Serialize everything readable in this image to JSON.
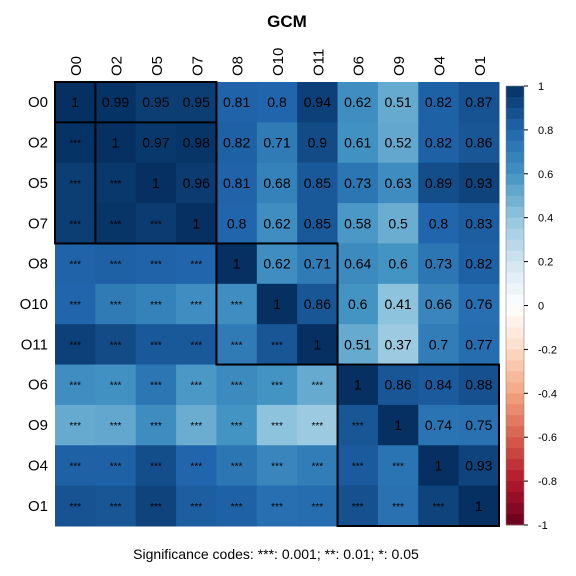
{
  "chart_data": {
    "type": "heatmap",
    "title": "GCM",
    "variables": [
      "O0",
      "O2",
      "O5",
      "O7",
      "O8",
      "O10",
      "O11",
      "O6",
      "O9",
      "O4",
      "O1"
    ],
    "upper_values": [
      [
        1,
        0.99,
        0.95,
        0.95,
        0.81,
        0.8,
        0.94,
        0.62,
        0.51,
        0.82,
        0.87
      ],
      [
        null,
        1,
        0.97,
        0.98,
        0.82,
        0.71,
        0.9,
        0.61,
        0.52,
        0.82,
        0.86
      ],
      [
        null,
        null,
        1,
        0.96,
        0.81,
        0.68,
        0.85,
        0.73,
        0.63,
        0.89,
        0.93
      ],
      [
        null,
        null,
        null,
        1,
        0.8,
        0.62,
        0.85,
        0.58,
        0.5,
        0.8,
        0.83
      ],
      [
        null,
        null,
        null,
        null,
        1,
        0.62,
        0.71,
        0.64,
        0.6,
        0.73,
        0.82
      ],
      [
        null,
        null,
        null,
        null,
        null,
        1,
        0.86,
        0.6,
        0.41,
        0.66,
        0.76
      ],
      [
        null,
        null,
        null,
        null,
        null,
        null,
        1,
        0.51,
        0.37,
        0.7,
        0.77
      ],
      [
        null,
        null,
        null,
        null,
        null,
        null,
        null,
        1,
        0.86,
        0.84,
        0.88
      ],
      [
        null,
        null,
        null,
        null,
        null,
        null,
        null,
        null,
        1,
        0.74,
        0.75
      ],
      [
        null,
        null,
        null,
        null,
        null,
        null,
        null,
        null,
        null,
        1,
        0.93
      ],
      [
        null,
        null,
        null,
        null,
        null,
        null,
        null,
        null,
        null,
        null,
        1
      ]
    ],
    "lower_significance": "***",
    "clusters": [
      {
        "start": 0,
        "end": 0
      },
      {
        "start": 1,
        "end": 3
      },
      {
        "start": 4,
        "end": 6
      },
      {
        "start": 7,
        "end": 10
      }
    ],
    "outer_cluster_box": {
      "start": 0,
      "end": 3
    },
    "color_scale": {
      "min": -1,
      "max": 1,
      "ticks": [
        1,
        0.8,
        0.6,
        0.4,
        0.2,
        0,
        -0.2,
        -0.4,
        -0.6,
        -0.8,
        -1
      ],
      "colors": [
        "#67001F",
        "#B2182B",
        "#D6604D",
        "#F4A582",
        "#FDDBC7",
        "#FFFFFF",
        "#D1E5F0",
        "#92C5DE",
        "#4393C3",
        "#2166AC",
        "#053061"
      ]
    },
    "footnote": "Significance codes:  ***: 0.001;  **: 0.01;  *: 0.05"
  }
}
